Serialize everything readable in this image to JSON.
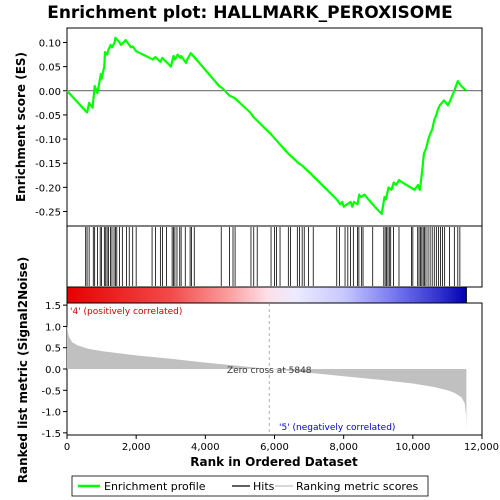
{
  "chart_data": {
    "type": "line",
    "title": "Enrichment plot: HALLMARK_PEROXISOME",
    "es_panel": {
      "ylabel": "Enrichment score (ES)",
      "ylim": [
        -0.28,
        0.13
      ],
      "yticks": [
        0.1,
        0.05,
        0.0,
        -0.05,
        -0.1,
        -0.15,
        -0.2,
        -0.25
      ],
      "ytick_labels": [
        "0.10",
        "0.05",
        "0.00",
        "-0.05",
        "-0.10",
        "-0.15",
        "-0.20",
        "-0.25"
      ],
      "series": {
        "name": "Enrichment profile",
        "color": "#00ff00",
        "x": [
          0,
          580,
          640,
          740,
          800,
          880,
          980,
          1000,
          1080,
          1100,
          1160,
          1200,
          1260,
          1300,
          1380,
          1400,
          1520,
          1560,
          1700,
          1750,
          1850,
          1900,
          2000,
          2480,
          2560,
          2700,
          2760,
          2800,
          2900,
          3000,
          3080,
          3120,
          3200,
          3280,
          3300,
          3440,
          3480,
          3580,
          3620,
          4400,
          4500,
          4700,
          4850,
          5300,
          5400,
          5900,
          6400,
          6700,
          6800,
          7100,
          7800,
          7900,
          7960,
          8000,
          8100,
          8200,
          8250,
          8300,
          8400,
          8450,
          8500,
          8600,
          8900,
          9100,
          9180,
          9220,
          9300,
          9380,
          9450,
          9520,
          9600,
          9700,
          10050,
          10150,
          10200,
          10230,
          10280,
          10320,
          10380,
          10450,
          10500,
          10560,
          10620,
          10680,
          10720,
          10780,
          10840,
          10900,
          11020,
          11200,
          11300,
          11400,
          11550
        ],
        "y": [
          0.0,
          -0.045,
          -0.025,
          -0.035,
          0.01,
          -0.005,
          0.035,
          0.025,
          0.05,
          0.08,
          0.075,
          0.085,
          0.095,
          0.09,
          0.1,
          0.11,
          0.1,
          0.095,
          0.105,
          0.1,
          0.09,
          0.092,
          0.082,
          0.065,
          0.07,
          0.06,
          0.068,
          0.065,
          0.058,
          0.05,
          0.072,
          0.065,
          0.075,
          0.068,
          0.072,
          0.058,
          0.065,
          0.078,
          0.075,
          0.01,
          0.005,
          -0.01,
          -0.015,
          -0.045,
          -0.055,
          -0.09,
          -0.13,
          -0.15,
          -0.155,
          -0.175,
          -0.225,
          -0.235,
          -0.23,
          -0.24,
          -0.235,
          -0.23,
          -0.24,
          -0.23,
          -0.235,
          -0.215,
          -0.22,
          -0.215,
          -0.24,
          -0.255,
          -0.22,
          -0.225,
          -0.2,
          -0.205,
          -0.19,
          -0.195,
          -0.185,
          -0.19,
          -0.205,
          -0.195,
          -0.205,
          -0.19,
          -0.16,
          -0.13,
          -0.12,
          -0.1,
          -0.09,
          -0.08,
          -0.06,
          -0.05,
          -0.04,
          -0.03,
          -0.025,
          -0.02,
          -0.03,
          0.0,
          0.02,
          0.01,
          0.0
        ]
      },
      "baseline_y": 0.0
    },
    "hits": {
      "name": "Hits",
      "positions": [
        540,
        580,
        640,
        760,
        800,
        880,
        960,
        1000,
        1080,
        1120,
        1160,
        1200,
        1260,
        1300,
        1360,
        1400,
        1440,
        1520,
        1600,
        1720,
        1800,
        1900,
        2000,
        2460,
        2560,
        2700,
        2760,
        2880,
        3040,
        3080,
        3120,
        3180,
        3260,
        3300,
        3420,
        3560,
        3600,
        3680,
        4460,
        4700,
        4800,
        4860,
        5320,
        5400,
        5500,
        5900,
        6000,
        6060,
        6160,
        6400,
        6460,
        6660,
        6720,
        6800,
        6860,
        6980,
        7120,
        7800,
        7880,
        8040,
        8120,
        8200,
        8280,
        8400,
        8440,
        8520,
        8560,
        8840,
        9160,
        9200,
        9240,
        9280,
        9320,
        9360,
        9440,
        9600,
        9960,
        10000,
        10140,
        10180,
        10220,
        10260,
        10300,
        10340,
        10380,
        10440,
        10500,
        10560,
        10620,
        10680,
        10740,
        10800,
        10860,
        10920,
        11060,
        11200,
        11300,
        11360
      ]
    },
    "heatmap_bar": {
      "stops": [
        {
          "x": 0,
          "color": "#e60000"
        },
        {
          "x": 3000,
          "color": "#f24a4a"
        },
        {
          "x": 4600,
          "color": "#fa9a9a"
        },
        {
          "x": 5800,
          "color": "#fde0e8"
        },
        {
          "x": 6600,
          "color": "#ecebff"
        },
        {
          "x": 8000,
          "color": "#c8c8ff"
        },
        {
          "x": 9600,
          "color": "#7070ee"
        },
        {
          "x": 10800,
          "color": "#3030cc"
        },
        {
          "x": 11550,
          "color": "#0000b4"
        }
      ]
    },
    "metric_panel": {
      "name": "Ranking metric scores",
      "ylabel": "Ranked list metric (Signal2Noise)",
      "ylim": [
        -1.55,
        1.55
      ],
      "yticks": [
        1.5,
        1.0,
        0.5,
        0.0,
        -0.5,
        -1.0,
        -1.5
      ],
      "ytick_labels": [
        "1.5",
        "1.0",
        "0.5",
        "0.0",
        "-0.5",
        "-1.0",
        "-1.5"
      ],
      "color": "#c0c0c0",
      "x": [
        0,
        20,
        60,
        150,
        300,
        600,
        1000,
        2000,
        3000,
        4000,
        5000,
        5848,
        7000,
        8000,
        9000,
        10000,
        10600,
        11000,
        11200,
        11400,
        11500,
        11540,
        11550
      ],
      "y": [
        1.05,
        0.9,
        0.75,
        0.63,
        0.56,
        0.48,
        0.42,
        0.32,
        0.24,
        0.15,
        0.07,
        0.0,
        -0.09,
        -0.17,
        -0.25,
        -0.34,
        -0.42,
        -0.5,
        -0.56,
        -0.66,
        -0.8,
        -1.1,
        -1.45
      ],
      "zero_cross_label": "Zero cross at 5848",
      "zero_cross": 5848,
      "pos_label": "'4' (positively correlated)",
      "neg_label": "'5' (negatively correlated)"
    },
    "x_axis": {
      "xlabel": "Rank in Ordered Dataset",
      "xlim": [
        0,
        12000
      ],
      "xticks": [
        0,
        2000,
        4000,
        6000,
        8000,
        10000,
        12000
      ],
      "xtick_labels": [
        "0",
        "2,000",
        "4,000",
        "6,000",
        "8,000",
        "10,000",
        "12,000"
      ]
    },
    "legend": [
      {
        "name": "Enrichment profile",
        "color": "#00ff00"
      },
      {
        "name": "Hits",
        "color": "#000000"
      },
      {
        "name": "Ranking metric scores",
        "color": "#c0c0c0"
      }
    ]
  }
}
